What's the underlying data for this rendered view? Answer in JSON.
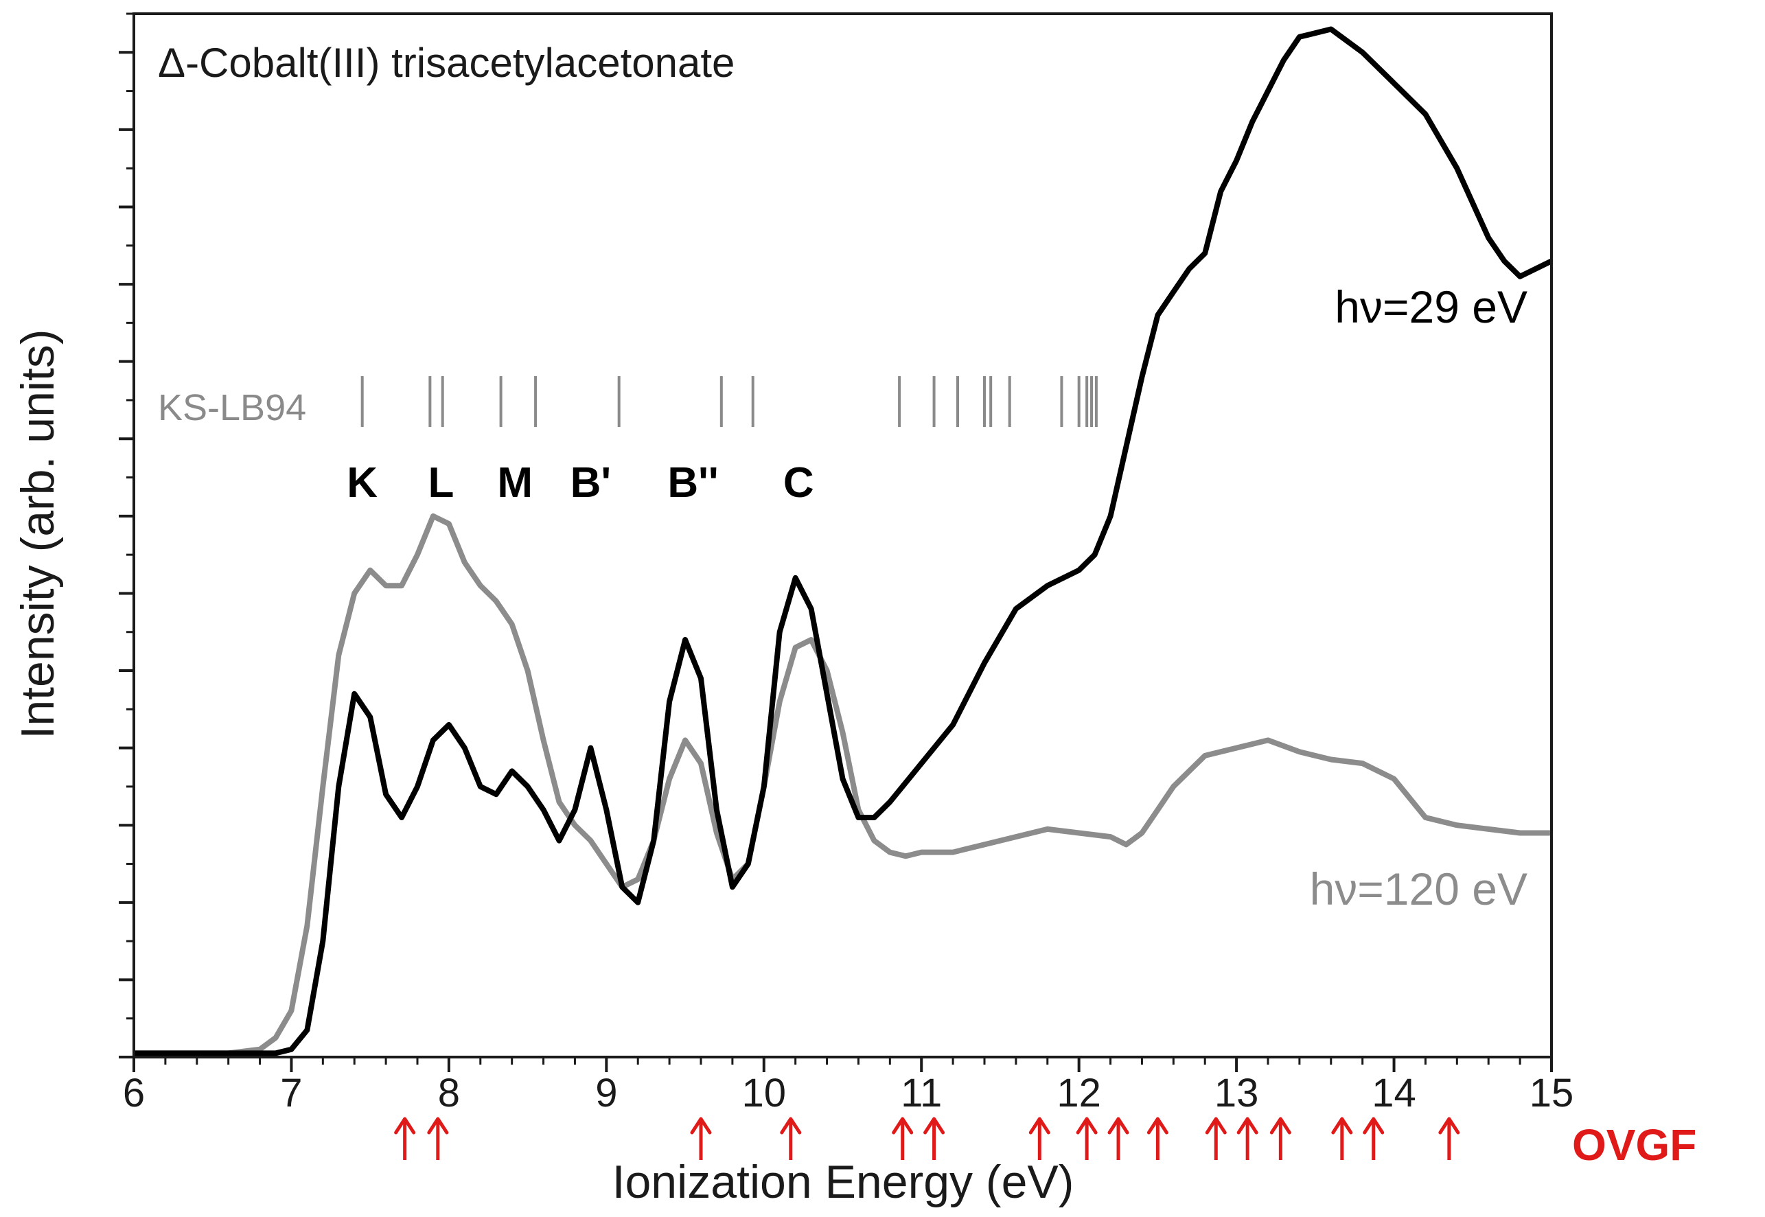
{
  "chart_data": {
    "type": "line",
    "title": "Δ-Cobalt(III) trisacetylacetonate",
    "xlabel": "Ionization Energy (eV)",
    "ylabel": "Intensity (arb. units)",
    "xlim": [
      6,
      15
    ],
    "ylim": [
      0,
      13.5
    ],
    "x_ticks": [
      6,
      7,
      8,
      9,
      10,
      11,
      12,
      13,
      14,
      15
    ],
    "x_tick_labels": [
      "6",
      "7",
      "8",
      "9",
      "10",
      "11",
      "12",
      "13",
      "14",
      "15"
    ],
    "y_tick_labels_shown": false,
    "series": [
      {
        "name": "hν=120 eV",
        "color": "#8c8c8c",
        "x": [
          6.0,
          6.3,
          6.6,
          6.8,
          6.9,
          7.0,
          7.1,
          7.2,
          7.3,
          7.4,
          7.5,
          7.6,
          7.7,
          7.8,
          7.9,
          8.0,
          8.1,
          8.2,
          8.3,
          8.4,
          8.5,
          8.6,
          8.7,
          8.8,
          8.9,
          9.0,
          9.1,
          9.2,
          9.3,
          9.4,
          9.5,
          9.6,
          9.7,
          9.8,
          9.9,
          10.0,
          10.1,
          10.2,
          10.3,
          10.4,
          10.5,
          10.6,
          10.7,
          10.8,
          10.9,
          11.0,
          11.2,
          11.4,
          11.6,
          11.8,
          12.0,
          12.2,
          12.3,
          12.4,
          12.5,
          12.6,
          12.8,
          13.0,
          13.2,
          13.4,
          13.6,
          13.8,
          14.0,
          14.2,
          14.4,
          14.6,
          14.8,
          15.0
        ],
        "values": [
          0.05,
          0.05,
          0.05,
          0.1,
          0.25,
          0.6,
          1.7,
          3.5,
          5.2,
          6.0,
          6.3,
          6.1,
          6.1,
          6.5,
          7.0,
          6.9,
          6.4,
          6.1,
          5.9,
          5.6,
          5.0,
          4.1,
          3.3,
          3.0,
          2.8,
          2.5,
          2.2,
          2.3,
          2.8,
          3.6,
          4.1,
          3.8,
          2.9,
          2.3,
          2.5,
          3.5,
          4.6,
          5.3,
          5.4,
          5.0,
          4.2,
          3.2,
          2.8,
          2.65,
          2.6,
          2.65,
          2.65,
          2.75,
          2.85,
          2.95,
          2.9,
          2.85,
          2.75,
          2.9,
          3.2,
          3.5,
          3.9,
          4.0,
          4.1,
          3.95,
          3.85,
          3.8,
          3.6,
          3.1,
          3.0,
          2.95,
          2.9,
          2.9
        ]
      },
      {
        "name": "hν=29 eV",
        "color": "#000000",
        "x": [
          6.0,
          6.5,
          6.8,
          6.9,
          7.0,
          7.1,
          7.2,
          7.3,
          7.4,
          7.5,
          7.6,
          7.7,
          7.8,
          7.9,
          8.0,
          8.1,
          8.2,
          8.3,
          8.4,
          8.5,
          8.6,
          8.7,
          8.8,
          8.9,
          9.0,
          9.1,
          9.2,
          9.3,
          9.4,
          9.5,
          9.6,
          9.7,
          9.8,
          9.9,
          10.0,
          10.1,
          10.2,
          10.3,
          10.4,
          10.5,
          10.6,
          10.7,
          10.8,
          11.0,
          11.2,
          11.4,
          11.6,
          11.8,
          12.0,
          12.1,
          12.2,
          12.3,
          12.4,
          12.5,
          12.6,
          12.7,
          12.8,
          12.9,
          13.0,
          13.1,
          13.2,
          13.3,
          13.4,
          13.6,
          13.8,
          14.0,
          14.2,
          14.4,
          14.6,
          14.7,
          14.8,
          15.0
        ],
        "values": [
          0.05,
          0.05,
          0.05,
          0.05,
          0.1,
          0.35,
          1.5,
          3.5,
          4.7,
          4.4,
          3.4,
          3.1,
          3.5,
          4.1,
          4.3,
          4.0,
          3.5,
          3.4,
          3.7,
          3.5,
          3.2,
          2.8,
          3.2,
          4.0,
          3.2,
          2.2,
          2.0,
          2.8,
          4.6,
          5.4,
          4.9,
          3.2,
          2.2,
          2.5,
          3.5,
          5.5,
          6.2,
          5.8,
          4.7,
          3.6,
          3.1,
          3.1,
          3.3,
          3.8,
          4.3,
          5.1,
          5.8,
          6.1,
          6.3,
          6.5,
          7.0,
          7.9,
          8.8,
          9.6,
          9.9,
          10.2,
          10.4,
          11.2,
          11.6,
          12.1,
          12.5,
          12.9,
          13.2,
          13.3,
          13.0,
          12.6,
          12.2,
          11.5,
          10.6,
          10.3,
          10.1,
          10.3
        ]
      }
    ],
    "annotations": {
      "ks_label": "KS-LB94",
      "ks_lines": [
        7.45,
        7.88,
        7.96,
        8.33,
        8.55,
        9.08,
        9.73,
        9.93,
        10.86,
        11.08,
        11.23,
        11.4,
        11.44,
        11.56,
        11.89,
        12.0,
        12.05,
        12.08,
        12.11
      ],
      "peak_labels": [
        {
          "text": "K",
          "x": 7.45
        },
        {
          "text": "L",
          "x": 7.95
        },
        {
          "text": "M",
          "x": 8.42
        },
        {
          "text": "B'",
          "x": 8.9
        },
        {
          "text": "B''",
          "x": 9.55
        },
        {
          "text": "C",
          "x": 10.22
        }
      ],
      "ovgf_label": "OVGF",
      "ovgf_arrows": [
        7.72,
        7.93,
        9.6,
        10.17,
        10.88,
        11.08,
        11.75,
        12.05,
        12.25,
        12.5,
        12.87,
        13.07,
        13.28,
        13.67,
        13.87,
        14.35
      ],
      "series_labels": [
        "hν=29 eV",
        "hν=120 eV"
      ]
    }
  }
}
